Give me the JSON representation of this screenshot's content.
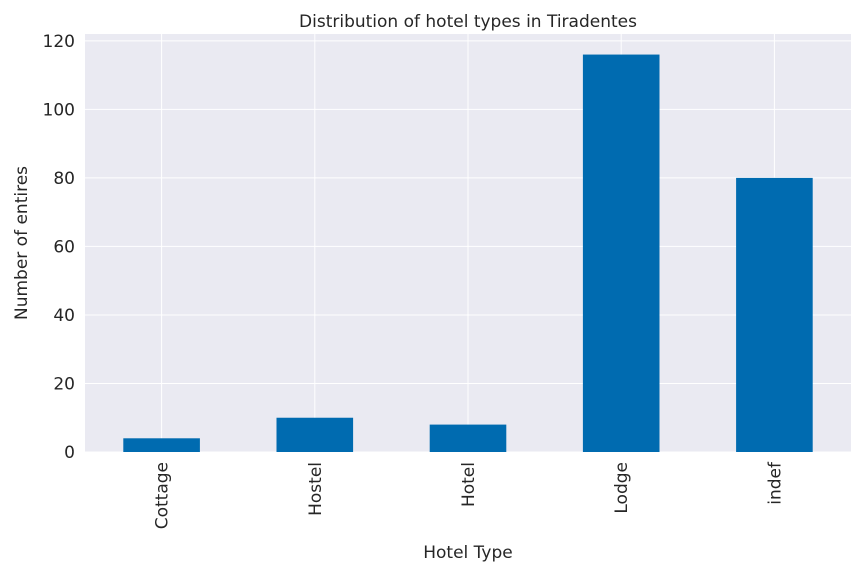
{
  "chart_data": {
    "type": "bar",
    "title": "Distribution of hotel types in Tiradentes",
    "xlabel": "Hotel Type",
    "ylabel": "Number of entires",
    "categories": [
      "Cottage",
      "Hostel",
      "Hotel",
      "Lodge",
      "indef"
    ],
    "values": [
      4,
      10,
      8,
      116,
      80
    ],
    "ylim": [
      0,
      122
    ],
    "yticks": [
      "0",
      "20",
      "40",
      "60",
      "80",
      "100",
      "120"
    ],
    "grid": true,
    "bar_color": "#006bb0",
    "background_color": "#eaeaf2",
    "grid_color": "#ffffff"
  }
}
